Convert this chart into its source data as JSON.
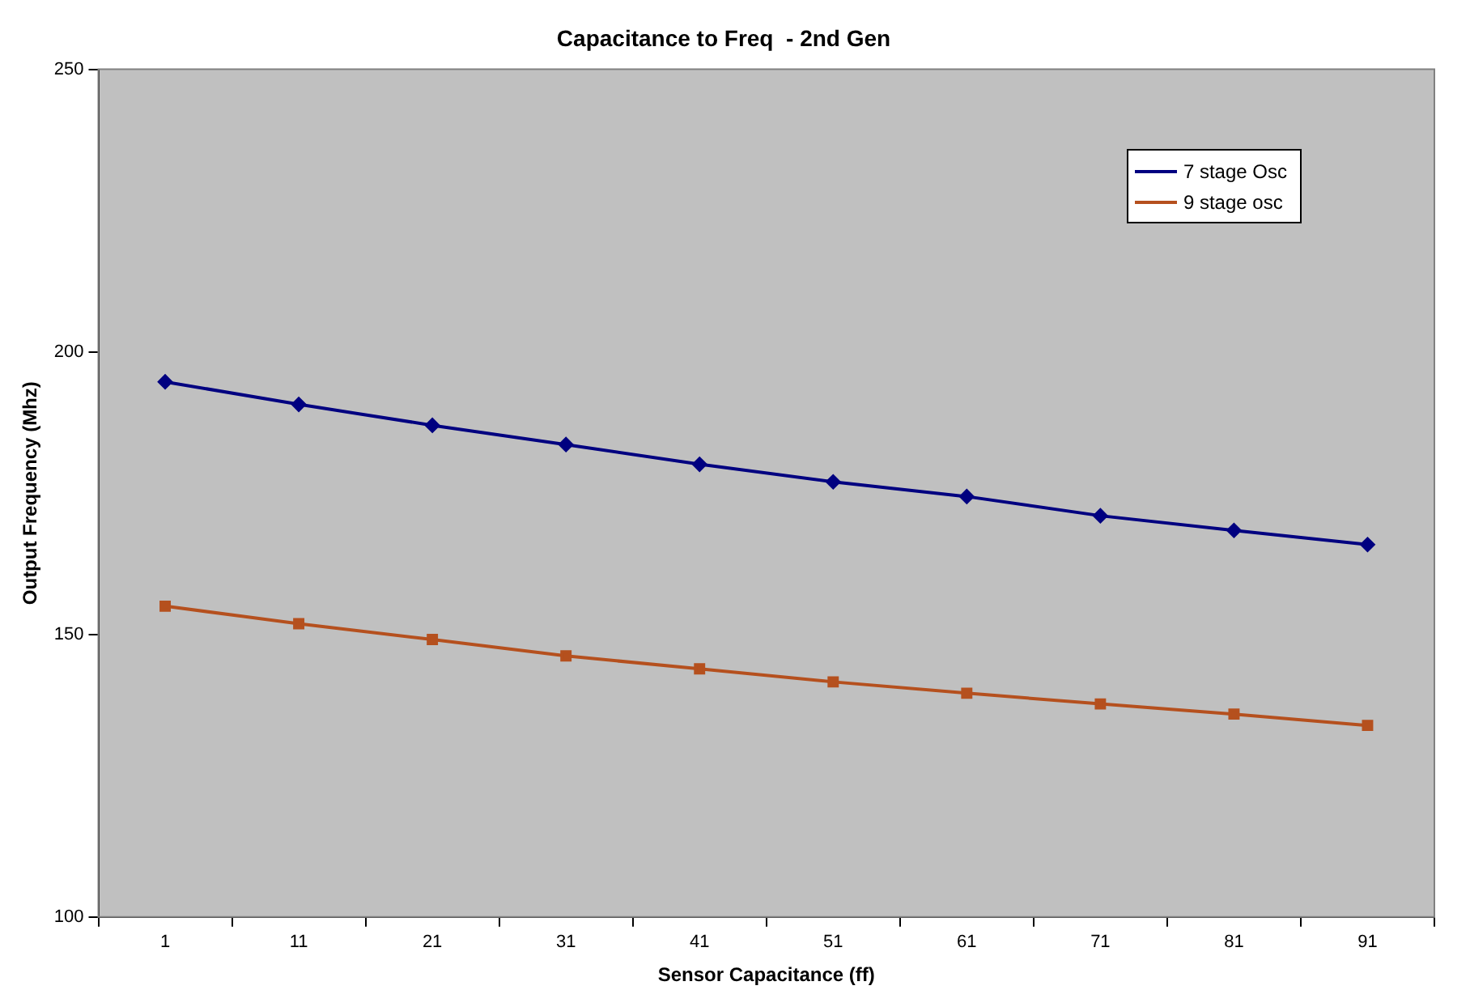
{
  "chart_data": {
    "type": "line",
    "title": "Capacitance to Freq  - 2nd Gen",
    "xlabel": "Sensor Capacitance (ff)",
    "ylabel": "Output Frequency (Mhz)",
    "categories": [
      "1",
      "11",
      "21",
      "31",
      "41",
      "51",
      "61",
      "71",
      "81",
      "91"
    ],
    "series": [
      {
        "name": "7 stage Osc",
        "color": "#000080",
        "marker": "diamond",
        "values": [
          194.7,
          190.7,
          187.0,
          183.6,
          180.1,
          177.0,
          174.4,
          171.0,
          168.4,
          165.9
        ]
      },
      {
        "name": "9 stage osc",
        "color": "#b5501e",
        "marker": "square",
        "values": [
          155.0,
          151.9,
          149.1,
          146.2,
          143.9,
          141.6,
          139.6,
          137.7,
          135.9,
          133.9
        ]
      }
    ],
    "ylim": [
      100,
      250
    ],
    "yticks": [
      100,
      150,
      200,
      250
    ],
    "grid": false,
    "legend": "top right"
  }
}
